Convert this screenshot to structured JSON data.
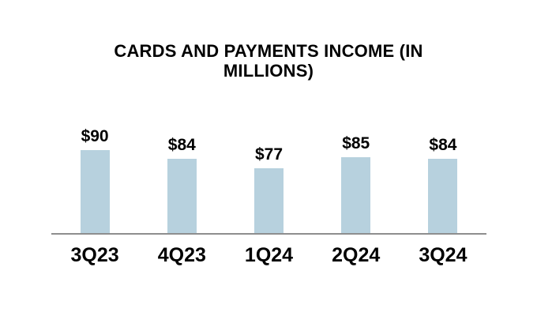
{
  "title": "CARDS AND PAYMENTS INCOME (IN MILLIONS)",
  "colors": {
    "background": "#FFFFFF",
    "bar": "#B7D1DE",
    "axis_line": "#8E8E8E",
    "text": "#000000"
  },
  "chart_data": {
    "type": "bar",
    "title": "CARDS AND PAYMENTS INCOME (IN MILLIONS)",
    "categories": [
      "3Q23",
      "4Q23",
      "1Q24",
      "2Q24",
      "3Q24"
    ],
    "values": [
      90,
      84,
      77,
      85,
      84
    ],
    "data_labels": [
      "$90",
      "$84",
      "$77",
      "$85",
      "$84"
    ],
    "xlabel": "",
    "ylabel": "",
    "ylim": [
      30,
      120
    ],
    "grid": false,
    "legend": false,
    "y_axis_visible": false,
    "data_labels_visible": true
  }
}
